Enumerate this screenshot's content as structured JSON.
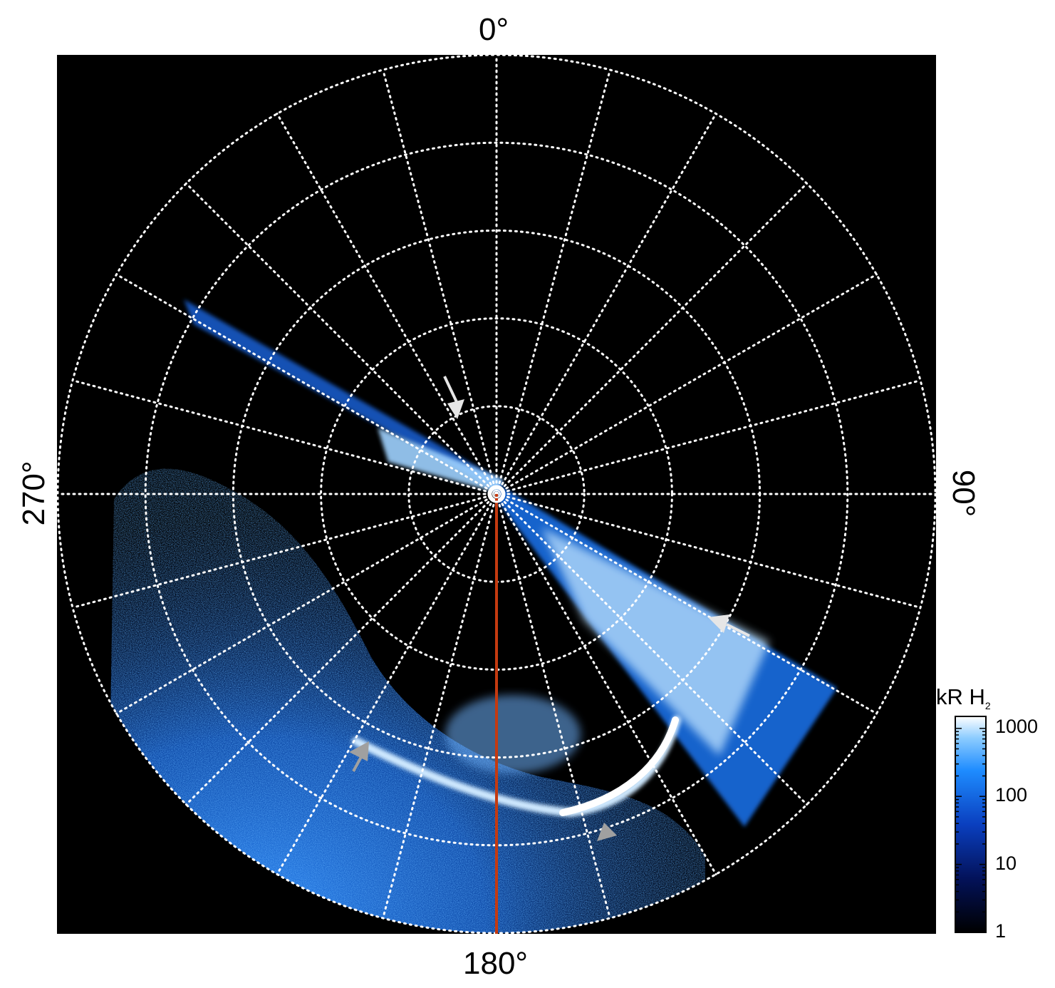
{
  "polar_map": {
    "angle_labels": {
      "top": "0°",
      "right": "90°",
      "bottom": "180°",
      "left": "270°"
    },
    "meridian_step_deg": 15,
    "latitude_circle_count": 5,
    "colors": {
      "background": "#000000",
      "grid": "#ffffff",
      "reference_meridian": "#c43a10",
      "arrows_white": "#e6e6e6",
      "arrows_gray": "#a0a0a0",
      "emission_dim": "#0a2f8c",
      "emission_mid": "#1e78ff",
      "emission_bright": "#ffffff"
    },
    "arrow_icons": [
      "arrow-white-upper",
      "arrow-white-right",
      "arrow-gray-left",
      "arrow-gray-lower"
    ]
  },
  "colorbar": {
    "title": "kR H",
    "title_subscript": "2",
    "scale": "log",
    "ticks": [
      "1000",
      "100",
      "10",
      "1"
    ],
    "range": [
      1,
      1500
    ]
  }
}
